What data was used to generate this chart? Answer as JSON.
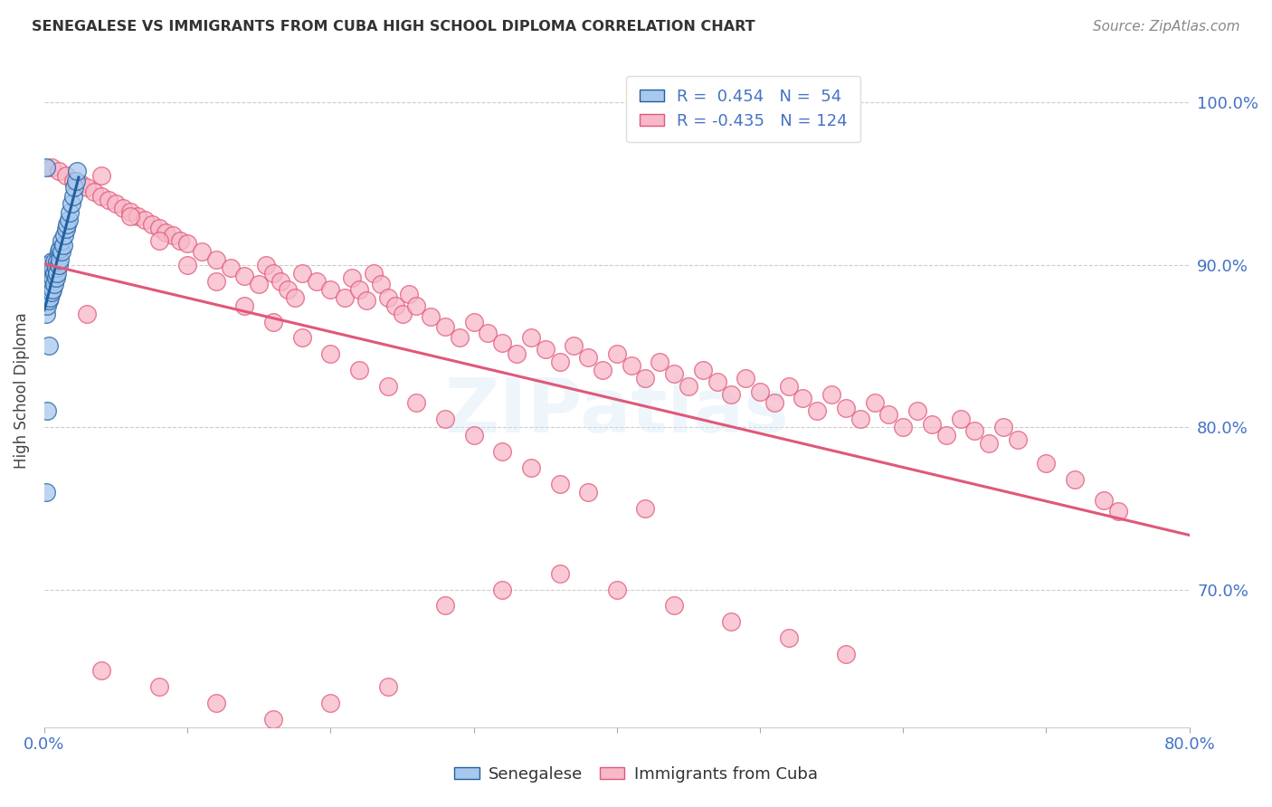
{
  "title": "SENEGALESE VS IMMIGRANTS FROM CUBA HIGH SCHOOL DIPLOMA CORRELATION CHART",
  "source": "Source: ZipAtlas.com",
  "ylabel": "High School Diploma",
  "y_ticks": [
    0.7,
    0.8,
    0.9,
    1.0
  ],
  "y_tick_labels": [
    "70.0%",
    "80.0%",
    "90.0%",
    "100.0%"
  ],
  "xlim": [
    0.0,
    0.8
  ],
  "ylim": [
    0.615,
    1.03
  ],
  "blue_color": "#a8c8ee",
  "pink_color": "#f7b8c8",
  "blue_line_color": "#2060a0",
  "pink_line_color": "#e05878",
  "axis_label_color": "#4472c4",
  "title_color": "#333333",
  "legend_blue_label": "R =  0.454   N =  54",
  "legend_pink_label": "R = -0.435   N = 124",
  "watermark": "ZIPatlas",
  "blue_scatter_x": [
    0.001,
    0.001,
    0.001,
    0.001,
    0.001,
    0.002,
    0.002,
    0.002,
    0.002,
    0.002,
    0.003,
    0.003,
    0.003,
    0.003,
    0.003,
    0.004,
    0.004,
    0.004,
    0.004,
    0.005,
    0.005,
    0.005,
    0.005,
    0.006,
    0.006,
    0.006,
    0.007,
    0.007,
    0.007,
    0.008,
    0.008,
    0.009,
    0.009,
    0.01,
    0.01,
    0.011,
    0.011,
    0.012,
    0.012,
    0.013,
    0.014,
    0.015,
    0.016,
    0.017,
    0.018,
    0.019,
    0.02,
    0.021,
    0.022,
    0.023,
    0.001,
    0.002,
    0.003,
    0.001
  ],
  "blue_scatter_y": [
    0.87,
    0.88,
    0.89,
    0.895,
    0.9,
    0.875,
    0.882,
    0.888,
    0.892,
    0.898,
    0.878,
    0.885,
    0.89,
    0.895,
    0.9,
    0.88,
    0.888,
    0.893,
    0.898,
    0.883,
    0.89,
    0.896,
    0.902,
    0.885,
    0.892,
    0.898,
    0.888,
    0.895,
    0.902,
    0.892,
    0.898,
    0.895,
    0.902,
    0.9,
    0.908,
    0.903,
    0.91,
    0.908,
    0.915,
    0.912,
    0.918,
    0.922,
    0.925,
    0.928,
    0.932,
    0.938,
    0.942,
    0.948,
    0.952,
    0.958,
    0.76,
    0.81,
    0.85,
    0.96
  ],
  "pink_scatter_x": [
    0.005,
    0.01,
    0.015,
    0.02,
    0.025,
    0.03,
    0.035,
    0.04,
    0.045,
    0.05,
    0.055,
    0.06,
    0.065,
    0.07,
    0.075,
    0.08,
    0.085,
    0.09,
    0.095,
    0.1,
    0.11,
    0.12,
    0.13,
    0.14,
    0.15,
    0.155,
    0.16,
    0.165,
    0.17,
    0.175,
    0.18,
    0.19,
    0.2,
    0.21,
    0.215,
    0.22,
    0.225,
    0.23,
    0.235,
    0.24,
    0.245,
    0.25,
    0.255,
    0.26,
    0.27,
    0.28,
    0.29,
    0.3,
    0.31,
    0.32,
    0.33,
    0.34,
    0.35,
    0.36,
    0.37,
    0.38,
    0.39,
    0.4,
    0.41,
    0.42,
    0.43,
    0.44,
    0.45,
    0.46,
    0.47,
    0.48,
    0.49,
    0.5,
    0.51,
    0.52,
    0.53,
    0.54,
    0.55,
    0.56,
    0.57,
    0.58,
    0.59,
    0.6,
    0.61,
    0.62,
    0.63,
    0.64,
    0.65,
    0.66,
    0.67,
    0.68,
    0.7,
    0.72,
    0.74,
    0.75,
    0.03,
    0.04,
    0.06,
    0.08,
    0.1,
    0.12,
    0.14,
    0.16,
    0.18,
    0.2,
    0.22,
    0.24,
    0.26,
    0.28,
    0.3,
    0.32,
    0.34,
    0.36,
    0.04,
    0.08,
    0.12,
    0.16,
    0.2,
    0.24,
    0.28,
    0.32,
    0.36,
    0.4,
    0.44,
    0.48,
    0.52,
    0.56,
    0.38,
    0.42
  ],
  "pink_scatter_y": [
    0.96,
    0.958,
    0.955,
    0.952,
    0.95,
    0.948,
    0.945,
    0.942,
    0.94,
    0.938,
    0.935,
    0.933,
    0.93,
    0.928,
    0.925,
    0.923,
    0.92,
    0.918,
    0.915,
    0.913,
    0.908,
    0.903,
    0.898,
    0.893,
    0.888,
    0.9,
    0.895,
    0.89,
    0.885,
    0.88,
    0.895,
    0.89,
    0.885,
    0.88,
    0.892,
    0.885,
    0.878,
    0.895,
    0.888,
    0.88,
    0.875,
    0.87,
    0.882,
    0.875,
    0.868,
    0.862,
    0.855,
    0.865,
    0.858,
    0.852,
    0.845,
    0.855,
    0.848,
    0.84,
    0.85,
    0.843,
    0.835,
    0.845,
    0.838,
    0.83,
    0.84,
    0.833,
    0.825,
    0.835,
    0.828,
    0.82,
    0.83,
    0.822,
    0.815,
    0.825,
    0.818,
    0.81,
    0.82,
    0.812,
    0.805,
    0.815,
    0.808,
    0.8,
    0.81,
    0.802,
    0.795,
    0.805,
    0.798,
    0.79,
    0.8,
    0.792,
    0.778,
    0.768,
    0.755,
    0.748,
    0.87,
    0.955,
    0.93,
    0.915,
    0.9,
    0.89,
    0.875,
    0.865,
    0.855,
    0.845,
    0.835,
    0.825,
    0.815,
    0.805,
    0.795,
    0.785,
    0.775,
    0.765,
    0.65,
    0.64,
    0.63,
    0.62,
    0.63,
    0.64,
    0.69,
    0.7,
    0.71,
    0.7,
    0.69,
    0.68,
    0.67,
    0.66,
    0.76,
    0.75
  ]
}
